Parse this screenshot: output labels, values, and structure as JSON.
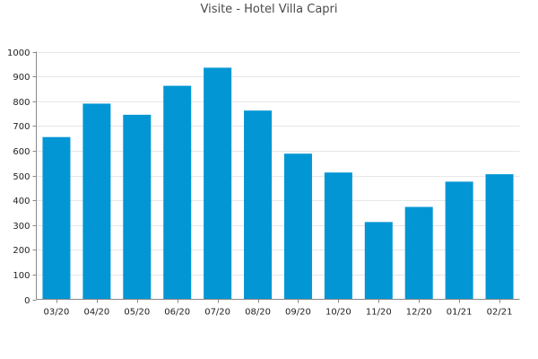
{
  "chart_data": {
    "type": "bar",
    "title": "Visite - Hotel Villa Capri",
    "xlabel": "",
    "ylabel": "",
    "categories": [
      "03/20",
      "04/20",
      "05/20",
      "06/20",
      "07/20",
      "08/20",
      "09/20",
      "10/20",
      "11/20",
      "12/20",
      "01/21",
      "02/21"
    ],
    "values": [
      655,
      790,
      745,
      862,
      935,
      762,
      588,
      512,
      312,
      373,
      475,
      505
    ],
    "ylim": [
      0,
      1000
    ],
    "yticks": [
      0,
      100,
      200,
      300,
      400,
      500,
      600,
      700,
      800,
      900,
      1000
    ],
    "grid": true,
    "legend": "none",
    "bar_color": "#0396d4"
  }
}
